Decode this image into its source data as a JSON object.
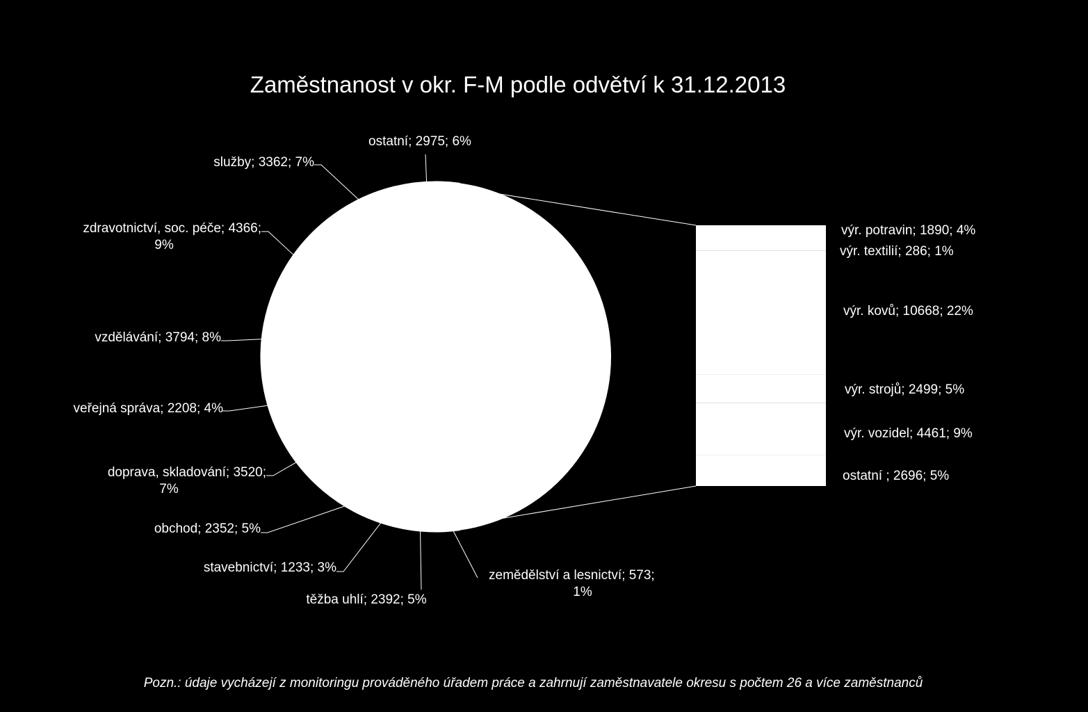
{
  "chart_data": {
    "type": "pie",
    "variant": "bar-of-pie",
    "title": "Zaměstnanost v okr. F-M podle odvětví k 31.12.2013",
    "colors": {
      "background": "#000000",
      "fill": "#ffffff",
      "text": "#ffffff",
      "leader": "#ffffff"
    },
    "pie": {
      "slices": [
        {
          "line1": "zemědělství a lesnictví; 573;",
          "line2": "1%",
          "value": 573,
          "percent": 1
        },
        {
          "line1": "těžba uhlí; 2392; 5%",
          "line2": "",
          "value": 2392,
          "percent": 5
        },
        {
          "line1": "stavebnictví; 1233; 3%",
          "line2": "",
          "value": 1233,
          "percent": 3
        },
        {
          "line1": "obchod; 2352; 5%",
          "line2": "",
          "value": 2352,
          "percent": 5
        },
        {
          "line1": "doprava, skladování; 3520;",
          "line2": "7%",
          "value": 3520,
          "percent": 7
        },
        {
          "line1": "veřejná správa; 2208; 4%",
          "line2": "",
          "value": 2208,
          "percent": 4
        },
        {
          "line1": "vzdělávání; 3794; 8%",
          "line2": "",
          "value": 3794,
          "percent": 8
        },
        {
          "line1": "zdravotnictví, soc. péče; 4366;",
          "line2": "9%",
          "value": 4366,
          "percent": 9
        },
        {
          "line1": "služby; 3362; 7%",
          "line2": "",
          "value": 3362,
          "percent": 7
        },
        {
          "line1": "ostatní; 2975; 6%",
          "line2": "",
          "value": 2975,
          "percent": 6
        }
      ]
    },
    "bar": {
      "segments": [
        {
          "label": "výr. potravin; 1890; 4%",
          "value": 1890,
          "percent": 4
        },
        {
          "label": "výr. textilií; 286; 1%",
          "value": 286,
          "percent": 1
        },
        {
          "label": "výr. kovů; 10668; 22%",
          "value": 10668,
          "percent": 22
        },
        {
          "label": "výr. strojů; 2499; 5%",
          "value": 2499,
          "percent": 5
        },
        {
          "label": "výr. vozidel; 4461; 9%",
          "value": 4461,
          "percent": 9
        },
        {
          "label": "ostatní ; 2696; 5%",
          "value": 2696,
          "percent": 5
        }
      ]
    },
    "legend": "none"
  },
  "footnote": "Pozn.: údaje vycházejí z monitoringu prováděného úřadem práce a zahrnují zaměstnavatele okresu s počtem 26 a více zaměstnanců"
}
